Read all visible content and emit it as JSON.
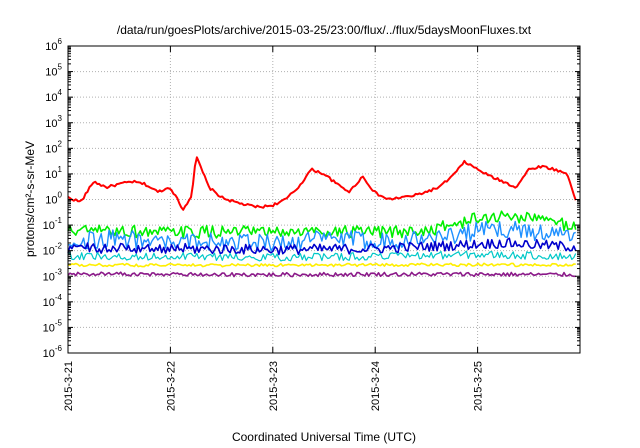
{
  "chart_data": {
    "type": "line",
    "title": "/data/run/goesPlots/archive/2015-03-25/23:00/flux/../flux/5daysMoonFluxes.txt",
    "xlabel": "Coordinated Universal Time (UTC)",
    "ylabel": "protons/cm²-s-sr-MeV",
    "yscale": "log",
    "ylim": [
      1e-06,
      1000000.0
    ],
    "xlim": [
      "2015-03-21",
      "2015-03-26"
    ],
    "grid": true,
    "x_ticks": [
      "2015-3-21",
      "2015-3-22",
      "2015-3-23",
      "2015-3-24",
      "2015-3-25"
    ],
    "y_ticks": [
      {
        "base": "10",
        "exp": "6"
      },
      {
        "base": "10",
        "exp": "5"
      },
      {
        "base": "10",
        "exp": "4"
      },
      {
        "base": "10",
        "exp": "3"
      },
      {
        "base": "10",
        "exp": "2"
      },
      {
        "base": "10",
        "exp": "1"
      },
      {
        "base": "10",
        "exp": "0"
      },
      {
        "base": "10",
        "exp": "-1"
      },
      {
        "base": "10",
        "exp": "-2"
      },
      {
        "base": "10",
        "exp": "-3"
      },
      {
        "base": "10",
        "exp": "-4"
      },
      {
        "base": "10",
        "exp": "-5"
      },
      {
        "base": "10",
        "exp": "-6"
      }
    ],
    "series": [
      {
        "color": "#ff0000",
        "width": 2,
        "noise": 0.05,
        "x": [
          "2015-03-21 00:00",
          "2015-03-21 03:00",
          "2015-03-21 06:00",
          "2015-03-21 09:00",
          "2015-03-21 12:00",
          "2015-03-21 15:00",
          "2015-03-21 18:00",
          "2015-03-21 21:00",
          "2015-03-22 00:00",
          "2015-03-22 03:00",
          "2015-03-22 05:00",
          "2015-03-22 06:00",
          "2015-03-22 07:00",
          "2015-03-22 08:00",
          "2015-03-22 09:00",
          "2015-03-22 12:00",
          "2015-03-22 15:00",
          "2015-03-22 18:00",
          "2015-03-22 21:00",
          "2015-03-23 00:00",
          "2015-03-23 03:00",
          "2015-03-23 06:00",
          "2015-03-23 09:00",
          "2015-03-23 12:00",
          "2015-03-23 15:00",
          "2015-03-23 18:00",
          "2015-03-23 21:00",
          "2015-03-24 00:00",
          "2015-03-24 03:00",
          "2015-03-24 06:00",
          "2015-03-24 09:00",
          "2015-03-24 12:00",
          "2015-03-24 15:00",
          "2015-03-24 18:00",
          "2015-03-24 21:00",
          "2015-03-25 00:00",
          "2015-03-25 03:00",
          "2015-03-25 06:00",
          "2015-03-25 09:00",
          "2015-03-25 12:00",
          "2015-03-25 15:00",
          "2015-03-25 18:00",
          "2015-03-25 21:00",
          "2015-03-25 23:00"
        ],
        "y": [
          1.2,
          0.8,
          5,
          3,
          4,
          5,
          4,
          2,
          3,
          0.4,
          1.5,
          50,
          20,
          8,
          3,
          1.2,
          0.8,
          0.6,
          0.5,
          0.6,
          1,
          3,
          15,
          10,
          4,
          2,
          8,
          1.8,
          1,
          1.2,
          1.4,
          2,
          3,
          8,
          30,
          15,
          8,
          5,
          3,
          15,
          20,
          15,
          10,
          1
        ]
      },
      {
        "color": "#00ee00",
        "width": 1.6,
        "noise": 0.25,
        "x": [
          "2015-03-21 00:00",
          "2015-03-21 12:00",
          "2015-03-22 00:00",
          "2015-03-22 12:00",
          "2015-03-23 00:00",
          "2015-03-23 12:00",
          "2015-03-24 00:00",
          "2015-03-24 12:00",
          "2015-03-24 18:00",
          "2015-03-25 00:00",
          "2015-03-25 06:00",
          "2015-03-25 12:00",
          "2015-03-25 18:00",
          "2015-03-25 23:00"
        ],
        "y": [
          0.06,
          0.06,
          0.05,
          0.055,
          0.05,
          0.06,
          0.05,
          0.06,
          0.1,
          0.18,
          0.22,
          0.2,
          0.14,
          0.08
        ]
      },
      {
        "color": "#1e90ff",
        "width": 1.4,
        "noise": 0.35,
        "x": [
          "2015-03-21 00:00",
          "2015-03-21 12:00",
          "2015-03-22 00:00",
          "2015-03-22 12:00",
          "2015-03-23 00:00",
          "2015-03-23 12:00",
          "2015-03-24 00:00",
          "2015-03-24 12:00",
          "2015-03-24 18:00",
          "2015-03-25 00:00",
          "2015-03-25 06:00",
          "2015-03-25 12:00",
          "2015-03-25 18:00",
          "2015-03-25 23:00"
        ],
        "y": [
          0.025,
          0.03,
          0.02,
          0.025,
          0.02,
          0.03,
          0.025,
          0.03,
          0.04,
          0.06,
          0.07,
          0.06,
          0.045,
          0.03
        ]
      },
      {
        "color": "#0000cc",
        "width": 1.6,
        "noise": 0.2,
        "x": [
          "2015-03-21 00:00",
          "2015-03-22 00:00",
          "2015-03-23 00:00",
          "2015-03-24 00:00",
          "2015-03-24 18:00",
          "2015-03-25 06:00",
          "2015-03-25 23:00"
        ],
        "y": [
          0.013,
          0.012,
          0.011,
          0.012,
          0.016,
          0.02,
          0.014
        ]
      },
      {
        "color": "#00c8c8",
        "width": 1.2,
        "noise": 0.15,
        "x": [
          "2015-03-21 00:00",
          "2015-03-22 00:00",
          "2015-03-23 00:00",
          "2015-03-24 00:00",
          "2015-03-25 00:00",
          "2015-03-25 23:00"
        ],
        "y": [
          0.006,
          0.006,
          0.0055,
          0.006,
          0.007,
          0.006
        ]
      },
      {
        "color": "#ffee00",
        "width": 1.6,
        "noise": 0.06,
        "x": [
          "2015-03-21 00:00",
          "2015-03-22 00:00",
          "2015-03-23 00:00",
          "2015-03-24 00:00",
          "2015-03-25 00:00",
          "2015-03-25 23:00"
        ],
        "y": [
          0.0028,
          0.0027,
          0.0027,
          0.0028,
          0.0028,
          0.0027
        ]
      },
      {
        "color": "#8b1a89",
        "width": 1.6,
        "noise": 0.08,
        "x": [
          "2015-03-21 00:00",
          "2015-03-22 00:00",
          "2015-03-23 00:00",
          "2015-03-24 00:00",
          "2015-03-25 00:00",
          "2015-03-25 23:00"
        ],
        "y": [
          0.0012,
          0.0012,
          0.00115,
          0.0012,
          0.0012,
          0.00115
        ]
      }
    ]
  }
}
